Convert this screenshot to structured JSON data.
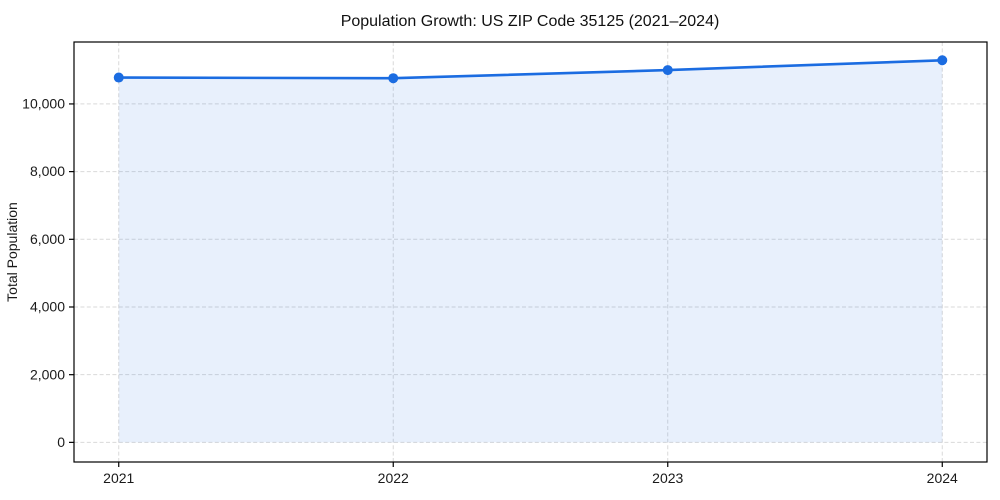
{
  "chart_data": {
    "type": "line",
    "title": "Population Growth: US ZIP Code 35125 (2021–2024)",
    "categories": [
      "2021",
      "2022",
      "2023",
      "2024"
    ],
    "series": [
      {
        "name": "Total Population",
        "values": [
          10780,
          10760,
          11000,
          11290
        ]
      }
    ],
    "xlabel": "",
    "ylabel": "Total Population",
    "yticks": [
      0,
      2000,
      4000,
      6000,
      8000,
      10000
    ],
    "ytick_labels": [
      "0",
      "2,000",
      "4,000",
      "6,000",
      "8,000",
      "10,000"
    ],
    "ylim": [
      -580,
      11830
    ],
    "grid": true,
    "grid_style": "dashed",
    "legend": "none",
    "area_fill": true,
    "marker": "circle",
    "line_color": "#1b6ce1",
    "fill_opacity": 0.1,
    "grid_color": "#d9d9d9",
    "axis_color": "#000000",
    "text_color": "#1a1a1a"
  }
}
